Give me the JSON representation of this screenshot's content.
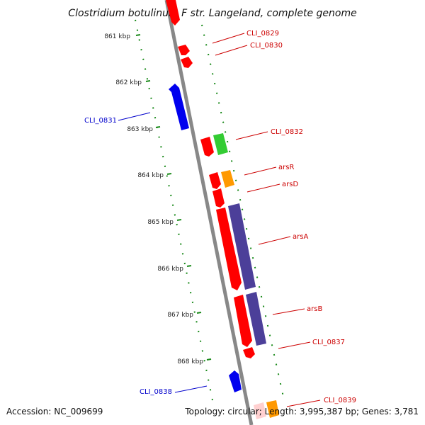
{
  "title": "Clostridium botulinum F str. Langeland, complete genome",
  "accession_label": "Accession: NC_009699",
  "summary_label": "Topology: circular; Length: 3,995,387 bp; Genes: 3,781",
  "ticks": [
    "861 kbp",
    "862 kbp",
    "863 kbp",
    "864 kbp",
    "865 kbp",
    "866 kbp",
    "867 kbp",
    "868 kbp"
  ],
  "colors": {
    "backbone": "#888888",
    "tick": "#1a8a1a",
    "gene_red": "#ff0000",
    "gene_blue": "#0000ee",
    "gene_green": "#33cc33",
    "gene_orange": "#ff9900",
    "gene_purple": "#4c3f99",
    "label_red": "#cc0000",
    "label_blue": "#0000cc"
  },
  "genes": [
    {
      "label": "CLI_0829",
      "color": "red"
    },
    {
      "label": "CLI_0830",
      "color": "red"
    },
    {
      "label": "CLI_0831",
      "color": "blue"
    },
    {
      "label": "CLI_0832",
      "color": "red"
    },
    {
      "label": "arsR",
      "color": "red"
    },
    {
      "label": "arsD",
      "color": "red"
    },
    {
      "label": "arsA",
      "color": "red"
    },
    {
      "label": "arsB",
      "color": "red"
    },
    {
      "label": "CLI_0837",
      "color": "red"
    },
    {
      "label": "CLI_0838",
      "color": "blue"
    },
    {
      "label": "CLI_0839",
      "color": "red"
    }
  ]
}
